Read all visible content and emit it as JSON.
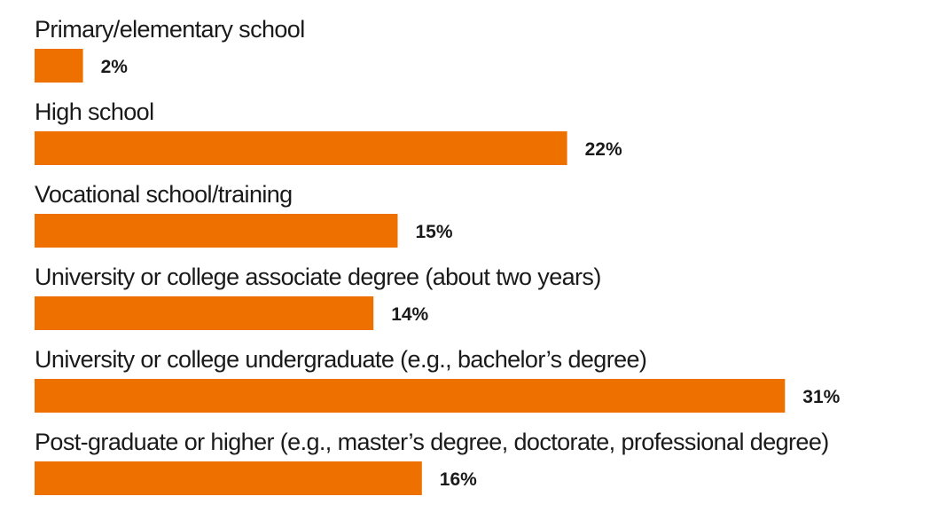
{
  "chart_data": {
    "type": "bar",
    "orientation": "horizontal",
    "categories": [
      "Primary/elementary school",
      "High school",
      "Vocational school/training",
      "University or college associate degree (about two years)",
      "University or college undergraduate (e.g., bachelor’s degree)",
      "Post-graduate or higher (e.g., master’s degree, doctorate, professional degree)"
    ],
    "values": [
      2,
      22,
      15,
      14,
      31,
      16
    ],
    "value_labels": [
      "2%",
      "22%",
      "15%",
      "14%",
      "31%",
      "16%"
    ],
    "unit": "%",
    "bar_color": "#EE7100",
    "grid": false,
    "legend": "none"
  }
}
